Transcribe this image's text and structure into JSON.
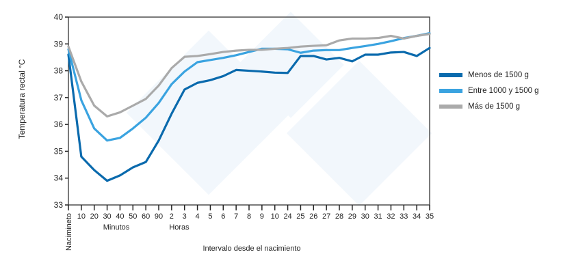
{
  "chart_data": {
    "type": "line",
    "title": "",
    "xlabel": "Intervalo desde el nacimiento",
    "ylabel": "Temperatura rectal °C",
    "ylim": [
      33,
      40
    ],
    "yticks": [
      33,
      34,
      35,
      36,
      37,
      38,
      39,
      40
    ],
    "categories": [
      "Nacimineto",
      "10",
      "20",
      "30",
      "40",
      "50",
      "60",
      "90",
      "2",
      "3",
      "4",
      "5",
      "6",
      "7",
      "8",
      "9",
      "10",
      "24",
      "25",
      "26",
      "27",
      "28",
      "29",
      "30",
      "31",
      "32",
      "33",
      "34",
      "35"
    ],
    "group_labels": [
      {
        "label": "Minutos",
        "from": "10",
        "to": "90"
      },
      {
        "label": "Horas",
        "from": "2",
        "to": "10"
      }
    ],
    "grid": false,
    "legend_position": "right",
    "series": [
      {
        "name": "Menos de 1500 g",
        "color": "#0a6aad",
        "values": [
          38.6,
          34.8,
          34.3,
          33.9,
          34.1,
          34.4,
          34.6,
          35.4,
          36.4,
          37.3,
          37.55,
          37.65,
          37.8,
          38.03,
          38.0,
          37.97,
          37.93,
          37.92,
          38.55,
          38.55,
          38.42,
          38.48,
          38.35,
          38.6,
          38.6,
          38.68,
          38.7,
          38.55,
          38.85
        ]
      },
      {
        "name": "Entre 1000 y 1500 g",
        "color": "#3aa3e0",
        "values": [
          38.8,
          36.9,
          35.85,
          35.4,
          35.5,
          35.85,
          36.25,
          36.8,
          37.5,
          37.97,
          38.32,
          38.4,
          38.48,
          38.58,
          38.7,
          38.82,
          38.82,
          38.8,
          38.67,
          38.75,
          38.77,
          38.77,
          38.85,
          38.92,
          39.0,
          39.1,
          39.22,
          39.3,
          39.4
        ]
      },
      {
        "name": "Más de 1500 g",
        "color": "#aaaaaa",
        "values": [
          38.9,
          37.6,
          36.7,
          36.3,
          36.45,
          36.7,
          36.95,
          37.45,
          38.1,
          38.52,
          38.55,
          38.62,
          38.7,
          38.75,
          38.78,
          38.78,
          38.82,
          38.85,
          38.9,
          38.93,
          38.95,
          39.13,
          39.2,
          39.2,
          39.22,
          39.3,
          39.2,
          39.3,
          39.37
        ]
      }
    ]
  }
}
